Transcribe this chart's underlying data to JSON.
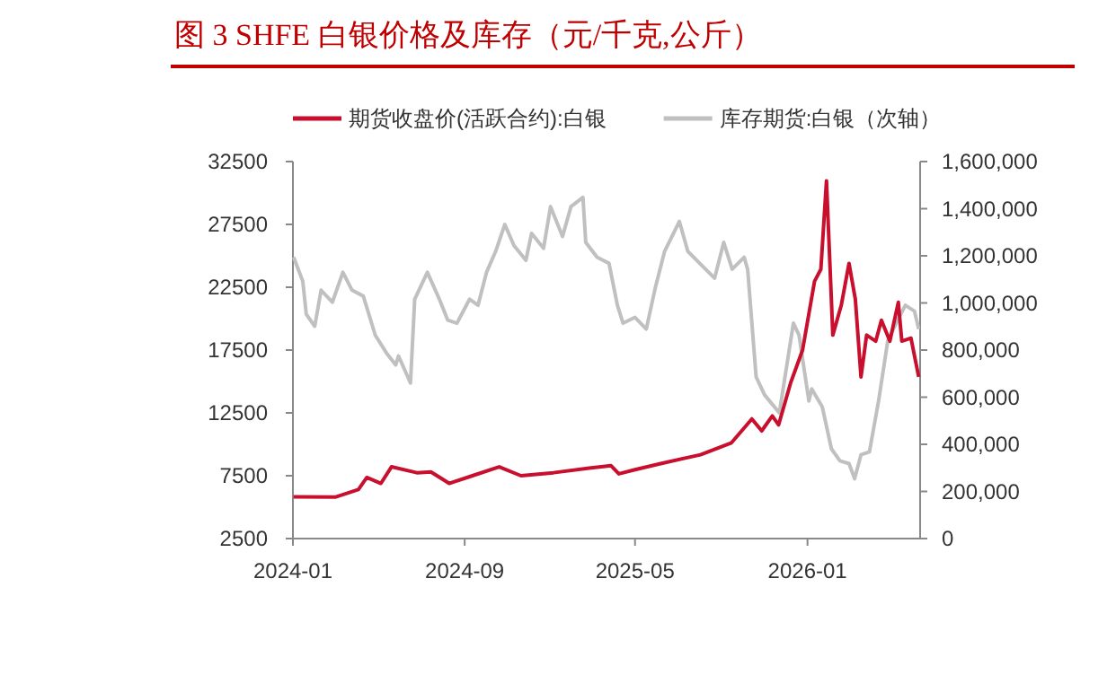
{
  "chart_data": {
    "type": "line",
    "title": "图 3  SHFE 白银价格及库存（元/千克,公斤）",
    "legend": "top",
    "grid": false,
    "xlim": [
      "2024-01-01",
      "2026-06-10"
    ],
    "xticks": [
      "2024-01",
      "2024-09",
      "2025-05",
      "2026-01"
    ],
    "ylim": [
      2500,
      32500
    ],
    "yticks": [
      2500,
      7500,
      12500,
      17500,
      22500,
      27500,
      32500
    ],
    "y2lim": [
      0,
      1600000
    ],
    "y2ticks": [
      {
        "value": 0,
        "label": "0"
      },
      {
        "value": 200000,
        "label": "200,000"
      },
      {
        "value": 400000,
        "label": "400,000"
      },
      {
        "value": 600000,
        "label": "600,000"
      },
      {
        "value": 800000,
        "label": "800,000"
      },
      {
        "value": 1000000,
        "label": "1,000,000"
      },
      {
        "value": 1200000,
        "label": "1,200,000"
      },
      {
        "value": 1400000,
        "label": "1,400,000"
      },
      {
        "value": 1600000,
        "label": "1,600,000"
      }
    ],
    "series": [
      {
        "name": "期货收盘价(活跃合约):白银",
        "color": "#c8102e",
        "x": [
          "2024-01-02",
          "2024-03-01",
          "2024-04-03",
          "2024-04-15",
          "2024-05-05",
          "2024-05-20",
          "2024-06-25",
          "2024-07-15",
          "2024-08-10",
          "2024-09-12",
          "2024-10-20",
          "2024-11-20",
          "2025-01-05",
          "2025-02-25",
          "2025-03-28",
          "2025-04-08",
          "2025-05-01",
          "2025-06-05",
          "2025-08-02",
          "2025-09-15",
          "2025-10-14",
          "2025-10-28",
          "2025-11-12",
          "2025-11-21",
          "2025-12-08",
          "2025-12-25",
          "2026-01-11",
          "2026-01-20",
          "2026-01-28",
          "2026-02-06",
          "2026-02-18",
          "2026-03-01",
          "2026-03-10",
          "2026-03-18",
          "2026-03-26",
          "2026-04-08",
          "2026-04-16",
          "2026-04-28",
          "2026-05-10",
          "2026-05-15",
          "2026-05-28",
          "2026-06-08"
        ],
        "values": [
          5830,
          5800,
          6400,
          7360,
          6890,
          8210,
          7740,
          7800,
          6890,
          7500,
          8210,
          7500,
          7740,
          8100,
          8300,
          7650,
          7980,
          8450,
          9170,
          10120,
          12020,
          11070,
          12260,
          11550,
          14880,
          17500,
          22970,
          23930,
          30970,
          18690,
          21070,
          24400,
          21540,
          15360,
          18690,
          18210,
          19880,
          18210,
          21300,
          18210,
          18450,
          15360
        ]
      },
      {
        "name": "库存期货:白银（次轴）",
        "color": "#c0c0c0",
        "axis": "y2",
        "x": [
          "2024-01-02",
          "2024-01-15",
          "2024-01-20",
          "2024-02-01",
          "2024-02-10",
          "2024-02-26",
          "2024-03-12",
          "2024-03-25",
          "2024-04-10",
          "2024-04-27",
          "2024-05-13",
          "2024-05-26",
          "2024-05-30",
          "2024-06-16",
          "2024-06-22",
          "2024-07-10",
          "2024-07-27",
          "2024-08-08",
          "2024-08-21",
          "2024-09-08",
          "2024-09-20",
          "2024-10-02",
          "2024-10-15",
          "2024-10-28",
          "2024-11-10",
          "2024-11-27",
          "2024-12-05",
          "2024-12-22",
          "2025-01-01",
          "2025-01-18",
          "2025-01-30",
          "2025-02-16",
          "2025-02-20",
          "2025-03-08",
          "2025-03-25",
          "2025-04-06",
          "2025-04-14",
          "2025-05-01",
          "2025-05-17",
          "2025-05-30",
          "2025-06-12",
          "2025-07-03",
          "2025-07-15",
          "2025-08-05",
          "2025-08-22",
          "2025-09-04",
          "2025-09-16",
          "2025-10-03",
          "2025-10-08",
          "2025-10-20",
          "2025-11-01",
          "2025-11-22",
          "2025-12-12",
          "2025-12-20",
          "2026-01-03",
          "2026-01-07",
          "2026-01-22",
          "2026-02-04",
          "2026-02-16",
          "2026-03-01",
          "2026-03-09",
          "2026-03-18",
          "2026-03-30",
          "2026-04-12",
          "2026-04-25",
          "2026-05-07",
          "2026-05-20",
          "2026-06-02",
          "2026-06-08"
        ],
        "values": [
          1194000,
          1092000,
          952000,
          901000,
          1054000,
          1003000,
          1130000,
          1054000,
          1029000,
          863000,
          787000,
          737000,
          775000,
          660000,
          1016000,
          1130000,
          1016000,
          927000,
          914000,
          1016000,
          990000,
          1130000,
          1219000,
          1333000,
          1244000,
          1181000,
          1295000,
          1232000,
          1409000,
          1282000,
          1409000,
          1448000,
          1257000,
          1194000,
          1168000,
          990000,
          914000,
          939000,
          889000,
          1067000,
          1219000,
          1346000,
          1219000,
          1156000,
          1105000,
          1257000,
          1143000,
          1194000,
          1143000,
          686000,
          610000,
          533000,
          914000,
          863000,
          584000,
          635000,
          559000,
          381000,
          330000,
          318000,
          254000,
          356000,
          368000,
          584000,
          838000,
          914000,
          990000,
          965000,
          889000
        ]
      }
    ]
  }
}
